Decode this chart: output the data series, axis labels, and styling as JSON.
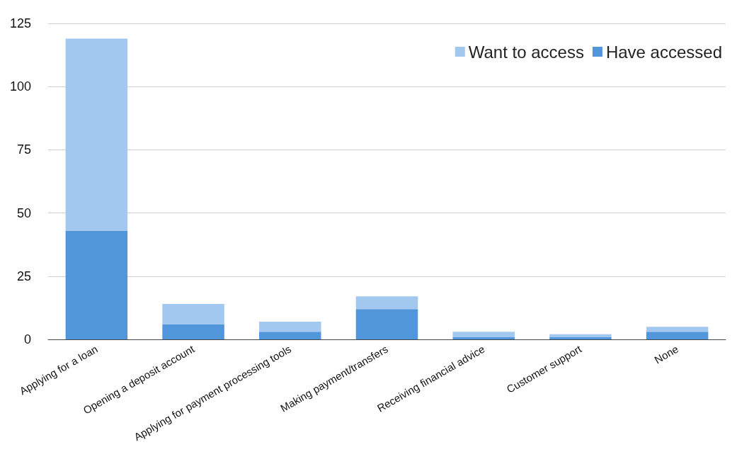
{
  "chart_data": {
    "type": "bar",
    "stacked": true,
    "categories": [
      "Applying for a loan",
      "Opening a deposit account",
      "Applying for payment processing tools",
      "Making payment/transfers",
      "Receiving financial advice",
      "Customer support",
      "None"
    ],
    "series": [
      {
        "name": "Have accessed",
        "color": "#5195db",
        "values": [
          43,
          6,
          3,
          12,
          1,
          1,
          3
        ]
      },
      {
        "name": "Want to access",
        "color": "#a3c8f0",
        "values": [
          76,
          8,
          4,
          5,
          2,
          1,
          2
        ]
      }
    ],
    "ylim": [
      0,
      125
    ],
    "yticks": [
      0,
      25,
      50,
      75,
      100,
      125
    ],
    "grid": "y",
    "legend": "top right"
  }
}
